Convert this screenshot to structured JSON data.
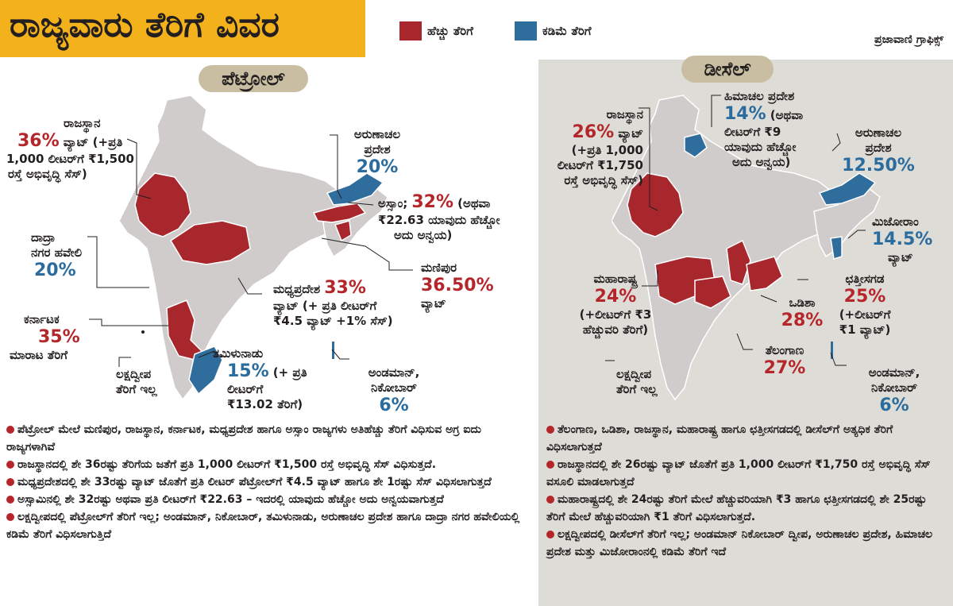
{
  "header": {
    "title": "ರಾಜ್ಯವಾರು ತೆರಿಗೆ ವಿವರ",
    "credit": "ಪ್ರಜಾವಾಣಿ ಗ್ರಾಫಿಕ್ಸ್"
  },
  "legend": {
    "high": {
      "label": "ಹೆಚ್ಚು ತೆರಿಗೆ",
      "color": "#a8272d"
    },
    "low": {
      "label": "ಕಡಿಮೆ ತೆರಿಗೆ",
      "color": "#2f6d9c"
    }
  },
  "colors": {
    "banner": "#f3b21b",
    "map_base": "#cfcccb",
    "panel_diesel": "#dedcd6",
    "tag": "#c9bea2"
  },
  "petrol": {
    "tag": "ಪೆಟ್ರೋಲ್",
    "rajasthan": {
      "name": "ರಾಜಸ್ಥಾನ",
      "pct": "36%",
      "l1": "ವ್ಯಾಟ್ (+ಪ್ರತಿ",
      "l2": "1,000 ಲೀಟರ್‌ಗೆ ₹1,500",
      "l3": "ರಸ್ತೆ ಅಭಿವೃದ್ಧಿ ಸೆಸ್)"
    },
    "arunachal": {
      "l1": "ಅರುಣಾಚಲ",
      "l2": "ಪ್ರದೇಶ",
      "pct": "20%"
    },
    "assam": {
      "name": "ಅಸ್ಸಾಂ;",
      "pct": "32%",
      "l1": "(ಅಥವಾ",
      "l2": "₹22.63 ಯಾವುದು ಹೆಚ್ಚೋ",
      "l3": "ಅದು ಅನ್ವಯ)"
    },
    "dadra": {
      "l1": "ದಾದ್ರಾ",
      "l2": "ನಗರ ಹವೇಲಿ",
      "pct": "20%"
    },
    "manipur": {
      "name": "ಮಣಿಪುರ",
      "pct": "36.50%",
      "l1": "ವ್ಯಾಟ್"
    },
    "mp": {
      "name": "ಮಧ್ಯಪ್ರದೇಶ",
      "pct": "33%",
      "l1": "ವ್ಯಾಟ್ (+ ಪ್ರತಿ ಲೀಟರ್‌ಗೆ",
      "l2": "₹4.5 ವ್ಯಾಟ್ +1% ಸೆಸ್)"
    },
    "karnataka": {
      "name": "ಕರ್ನಾಟಕ",
      "pct": "35%",
      "l1": "ಮಾರಾಟ ತೆರಿಗೆ"
    },
    "lakshadweep": {
      "l1": "ಲಕ್ಷದ್ವೀಪ",
      "l2": "ತೆರಿಗೆ ಇಲ್ಲ"
    },
    "tamilnadu": {
      "name": "ತಮಿಳುನಾಡು",
      "pct": "15%",
      "l1": "(+ ಪ್ರತಿ",
      "l2": "ಲೀಟರ್‌ಗೆ",
      "l3": "₹13.02 ತೆರಿಗೆ)"
    },
    "andaman": {
      "l1": "ಅಂಡಮಾನ್,",
      "l2": "ನಿಕೋಬಾರ್",
      "pct": "6%"
    },
    "bullets": [
      "ಪೆಟ್ರೋಲ್ ಮೇಲೆ ಮಣಿಪುರ, ರಾಜಸ್ಥಾನ, ಕರ್ನಾಟಕ, ಮಧ್ಯಪ್ರದೇಶ ಹಾಗೂ ಅಸ್ಸಾಂ ರಾಜ್ಯಗಳು ಅತಿಹೆಚ್ಚು ತೆರಿಗೆ ವಿಧಿಸುವ ಅಗ್ರ ಐದು ರಾಜ್ಯಗಳಾಗಿವೆ",
      "ರಾಜಸ್ಥಾನದಲ್ಲಿ ಶೇ 36ರಷ್ಟು ತೆರಿಗೆಯ ಜತೆಗೆ ಪ್ರತಿ 1,000 ಲೀಟರ್‌ಗೆ ₹1,500 ರಸ್ತೆ ಅಭಿವೃದ್ಧಿ ಸೆಸ್ ವಿಧಿಸುತ್ತದೆ.",
      "ಮಧ್ಯಪ್ರದೇಶದಲ್ಲಿ ಶೇ 33ರಷ್ಟು ವ್ಯಾಟ್ ಜೊತೆಗೆ ಪ್ರತಿ ಲೀಟರ್ ಪೆಟ್ರೋಲ್‌ಗೆ ₹4.5 ವ್ಯಾಟ್ ಹಾಗೂ ಶೇ 1ರಷ್ಟು ಸೆಸ್ ವಿಧಿಸಲಾಗುತ್ತದೆ",
      "ಅಸ್ಸಾಮಿನಲ್ಲಿ ಶೇ 32ರಷ್ಟು ಅಥವಾ ಪ್ರತಿ ಲೀಟರ್‌ಗೆ ₹22.63 – ಇದರಲ್ಲಿ ಯಾವುದು ಹೆಚ್ಚೋ ಅದು ಅನ್ವಯವಾಗುತ್ತದೆ",
      "ಲಕ್ಷದ್ವೀಪದಲ್ಲಿ ಪೆಟ್ರೋಲ್‌ಗೆ ತೆರಿಗೆ ಇಲ್ಲ; ಅಂಡಮಾನ್, ನಿಕೋಬಾರ್, ತಮಿಳುನಾಡು, ಅರುಣಾಚಲ ಪ್ರದೇಶ ಹಾಗೂ ದಾದ್ರಾ ನಗರ ಹವೇಲಿಯಲ್ಲಿ ಕಡಿಮೆ ತೆರಿಗೆ ವಿಧಿಸಲಾಗುತ್ತಿದೆ"
    ]
  },
  "diesel": {
    "tag": "ಡೀಸೆಲ್",
    "rajasthan": {
      "name": "ರಾಜಸ್ಥಾನ",
      "pct": "26%",
      "l1": "ವ್ಯಾಟ್",
      "l2": "(+ಪ್ರತಿ 1,000",
      "l3": "ಲೀಟರ್‌ಗೆ ₹1,750",
      "l4": "ರಸ್ತೆ ಅಭಿವೃದ್ಧಿ ಸೆಸ್)"
    },
    "himachal": {
      "name": "ಹಿಮಾಚಲ ಪ್ರದೇಶ",
      "pct": "14%",
      "l1": "(ಅಥವಾ",
      "l2": "ಲೀಟರ್‌ಗೆ ₹9",
      "l3": "ಯಾವುದು ಹೆಚ್ಚೋ",
      "l4": "ಅದು ಅನ್ವಯ)"
    },
    "arunachal": {
      "l1": "ಅರುಣಾಚಲ",
      "l2": "ಪ್ರದೇಶ",
      "pct": "12.50%"
    },
    "mizoram": {
      "name": "ಮಿಜೋರಾಂ",
      "pct": "14.5%",
      "l1": "ವ್ಯಾಟ್"
    },
    "maharashtra": {
      "name": "ಮಹಾರಾಷ್ಟ್ರ",
      "pct": "24%",
      "l1": "(+ಲೀಟರ್‌ಗೆ ₹3",
      "l2": "ಹೆಚ್ಚುವರಿ ತೆರಿಗೆ)"
    },
    "chhattisgarh": {
      "name": "ಛತ್ತೀಸಗಡ",
      "pct": "25%",
      "l1": "(+ಲೀಟರ್‌ಗೆ",
      "l2": "₹1 ವ್ಯಾಟ್)"
    },
    "odisha": {
      "name": "ಒಡಿಶಾ",
      "pct": "28%"
    },
    "telangana": {
      "name": "ತೆಲಂಗಾಣ",
      "pct": "27%"
    },
    "lakshadweep": {
      "l1": "ಲಕ್ಷದ್ವೀಪ",
      "l2": "ತೆರಿಗೆ ಇಲ್ಲ"
    },
    "andaman": {
      "l1": "ಅಂಡಮಾನ್,",
      "l2": "ನಿಕೋಬಾರ್",
      "pct": "6%"
    },
    "bullets": [
      "ತೆಲಂಗಾಣ, ಒಡಿಶಾ, ರಾಜಸ್ಥಾನ, ಮಹಾರಾಷ್ಟ್ರ ಹಾಗೂ ಛತ್ತೀಸಗಡದಲ್ಲಿ ಡೀಸೆಲ್‌ಗೆ ಅತ್ಯಧಿಕ ತೆರಿಗೆ ವಿಧಿಸಲಾಗುತ್ತದೆ",
      "ರಾಜಸ್ಥಾನದಲ್ಲಿ ಶೇ 26ರಷ್ಟು ವ್ಯಾಟ್ ಜೊತೆಗೆ ಪ್ರತಿ 1,000 ಲೀಟರ್‌ಗೆ ₹1,750 ರಸ್ತೆ ಅಭಿವೃದ್ಧಿ ಸೆಸ್ ವಸೂಲಿ ಮಾಡಲಾಗುತ್ತದೆ",
      "ಮಹಾರಾಷ್ಟ್ರದಲ್ಲಿ ಶೇ 24ರಷ್ಟು ತೆರಿಗೆ ಮೇಲೆ ಹೆಚ್ಚುವರಿಯಾಗಿ ₹3 ಹಾಗೂ ಛತ್ತೀಸಗಡದಲ್ಲಿ ಶೇ 25ರಷ್ಟು ತೆರಿಗೆ ಮೇಲೆ ಹೆಚ್ಚುವರಿಯಾಗಿ ₹1 ತೆರಿಗೆ ವಿಧಿಸಲಾಗುತ್ತದೆ.",
      "ಲಕ್ಷದ್ವೀಪದಲ್ಲಿ ಡೀಸೆಲ್‌ಗೆ ತೆರಿಗೆ ಇಲ್ಲ; ಅಂಡಮಾನ್ ನಿಕೋಬಾರ್ ದ್ವೀಪ, ಅರುಣಾಚಲ ಪ್ರದೇಶ, ಹಿಮಾಚಲ ಪ್ರದೇಶ ಮತ್ತು ಮಿಜೋರಾಂನಲ್ಲಿ ಕಡಿಮೆ ತೆರಿಗೆ ಇದೆ"
    ]
  }
}
